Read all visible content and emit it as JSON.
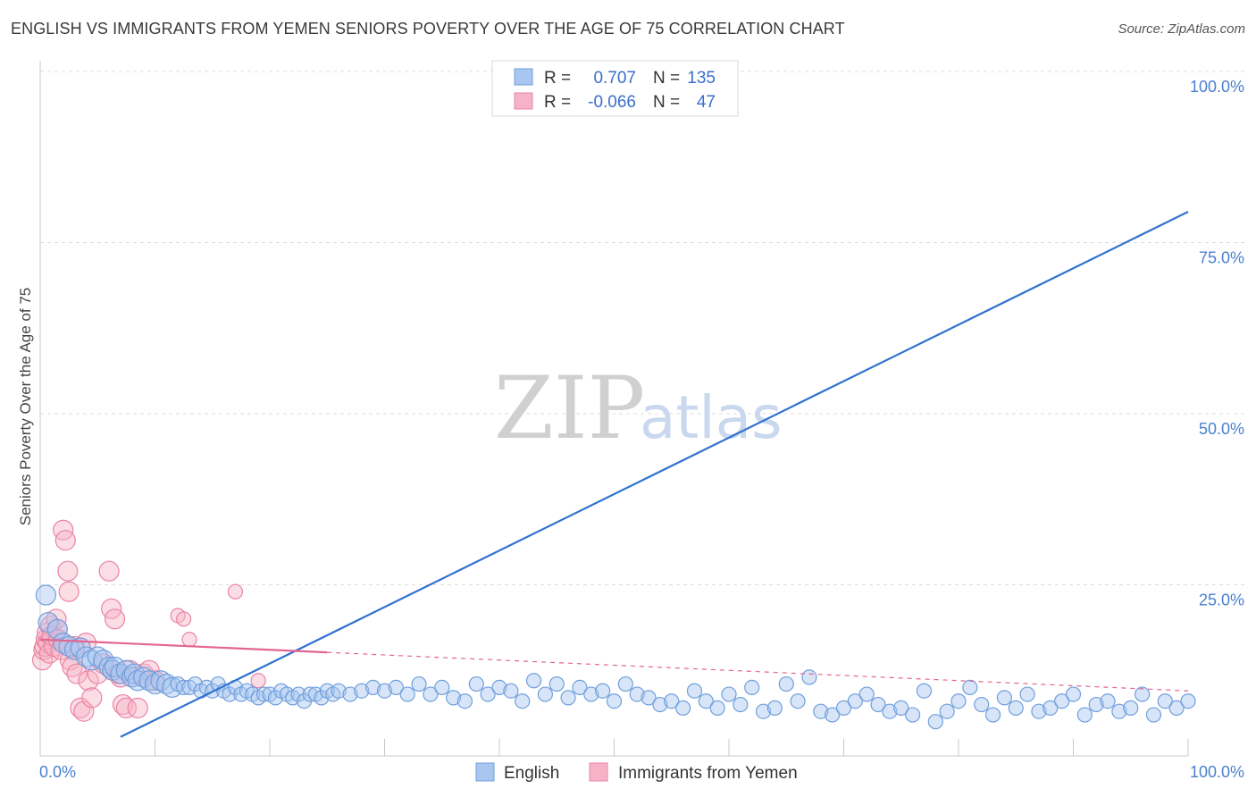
{
  "header": {
    "title": "ENGLISH VS IMMIGRANTS FROM YEMEN SENIORS POVERTY OVER THE AGE OF 75 CORRELATION CHART",
    "source": "Source: ZipAtlas.com"
  },
  "watermark": {
    "zip": "ZIP",
    "atlas": "atlas"
  },
  "colors": {
    "english_fill": "#a9c6f0",
    "english_stroke": "#6f9fdc",
    "english_line": "#2f72d1",
    "yemen_fill": "#f6b3c8",
    "yemen_stroke": "#ea84a4",
    "yemen_line": "#e26591",
    "axis_text": "#4a7fd0"
  },
  "legend": {
    "rows": [
      {
        "r_label": "R =",
        "r_value": "0.707",
        "n_label": "N =",
        "n_value": "135"
      },
      {
        "r_label": "R =",
        "r_value": "-0.066",
        "n_label": "N =",
        "n_value": "47"
      }
    ]
  },
  "bottom_legend": {
    "items": [
      {
        "label": "English"
      },
      {
        "label": "Immigrants from Yemen"
      }
    ]
  },
  "chart_data": {
    "type": "scatter",
    "title": "ENGLISH VS IMMIGRANTS FROM YEMEN SENIORS POVERTY OVER THE AGE OF 75 CORRELATION CHART",
    "xlabel": "",
    "ylabel": "Seniors Poverty Over the Age of 75",
    "xlim": [
      0,
      100
    ],
    "ylim": [
      0,
      100
    ],
    "x_tick_labels": [
      "0.0%",
      "100.0%"
    ],
    "y_tick_values": [
      25,
      50,
      75,
      100
    ],
    "y_tick_labels": [
      "25.0%",
      "50.0%",
      "75.0%",
      "100.0%"
    ],
    "series": [
      {
        "name": "English",
        "r": 0.707,
        "n": 135,
        "trend": {
          "x": [
            0,
            100
          ],
          "y": [
            -3,
            79.5
          ]
        },
        "points": [
          [
            0.5,
            23.5
          ],
          [
            0.7,
            19.5
          ],
          [
            1.5,
            18.5
          ],
          [
            2,
            16.5
          ],
          [
            2.5,
            16
          ],
          [
            3,
            15.5
          ],
          [
            3.5,
            15.8
          ],
          [
            4,
            14.5
          ],
          [
            4.5,
            14
          ],
          [
            5,
            14.5
          ],
          [
            5.5,
            14
          ],
          [
            6,
            13
          ],
          [
            6.3,
            12.5
          ],
          [
            6.5,
            13
          ],
          [
            7,
            12
          ],
          [
            7.5,
            12.5
          ],
          [
            8,
            11.5
          ],
          [
            8.2,
            12
          ],
          [
            8.5,
            11
          ],
          [
            9,
            11.5
          ],
          [
            9.5,
            11
          ],
          [
            10,
            10.5
          ],
          [
            10.5,
            11
          ],
          [
            11,
            10.5
          ],
          [
            11.5,
            10
          ],
          [
            12,
            10.5
          ],
          [
            12.5,
            10
          ],
          [
            13,
            10
          ],
          [
            13.5,
            10.5
          ],
          [
            14,
            9.5
          ],
          [
            14.5,
            10
          ],
          [
            15,
            9.5
          ],
          [
            15.5,
            10.5
          ],
          [
            16,
            9.5
          ],
          [
            16.5,
            9
          ],
          [
            17,
            10
          ],
          [
            17.5,
            9
          ],
          [
            18,
            9.5
          ],
          [
            18.5,
            9
          ],
          [
            19,
            8.5
          ],
          [
            19.5,
            9
          ],
          [
            20,
            9
          ],
          [
            20.5,
            8.5
          ],
          [
            21,
            9.5
          ],
          [
            21.5,
            9
          ],
          [
            22,
            8.5
          ],
          [
            22.5,
            9
          ],
          [
            23,
            8
          ],
          [
            23.5,
            9
          ],
          [
            24,
            9
          ],
          [
            24.5,
            8.5
          ],
          [
            25,
            9.5
          ],
          [
            25.5,
            9
          ],
          [
            26,
            9.5
          ],
          [
            27,
            9
          ],
          [
            28,
            9.5
          ],
          [
            29,
            10
          ],
          [
            30,
            9.5
          ],
          [
            31,
            10
          ],
          [
            32,
            9
          ],
          [
            33,
            10.5
          ],
          [
            34,
            9
          ],
          [
            35,
            10
          ],
          [
            36,
            8.5
          ],
          [
            37,
            8
          ],
          [
            38,
            10.5
          ],
          [
            39,
            9
          ],
          [
            40,
            10
          ],
          [
            41,
            9.5
          ],
          [
            42,
            8
          ],
          [
            43,
            11
          ],
          [
            44,
            9
          ],
          [
            45,
            10.5
          ],
          [
            46,
            8.5
          ],
          [
            47,
            10
          ],
          [
            48,
            9
          ],
          [
            49,
            9.5
          ],
          [
            50,
            8
          ],
          [
            51,
            10.5
          ],
          [
            52,
            9
          ],
          [
            53,
            8.5
          ],
          [
            54,
            7.5
          ],
          [
            55,
            8
          ],
          [
            56,
            7
          ],
          [
            57,
            9.5
          ],
          [
            58,
            8
          ],
          [
            59,
            7
          ],
          [
            60,
            9
          ],
          [
            61,
            7.5
          ],
          [
            62,
            10
          ],
          [
            63,
            6.5
          ],
          [
            64,
            7
          ],
          [
            65,
            10.5
          ],
          [
            66,
            8
          ],
          [
            67,
            11.5
          ],
          [
            68,
            6.5
          ],
          [
            69,
            6
          ],
          [
            70,
            7
          ],
          [
            71,
            8
          ],
          [
            72,
            9
          ],
          [
            73,
            7.5
          ],
          [
            74,
            6.5
          ],
          [
            75,
            7
          ],
          [
            76,
            6
          ],
          [
            77,
            9.5
          ],
          [
            78,
            5
          ],
          [
            79,
            6.5
          ],
          [
            80,
            8
          ],
          [
            81,
            10
          ],
          [
            82,
            7.5
          ],
          [
            83,
            6
          ],
          [
            84,
            8.5
          ],
          [
            85,
            7
          ],
          [
            86,
            9
          ],
          [
            87,
            6.5
          ],
          [
            88,
            7
          ],
          [
            89,
            8
          ],
          [
            90,
            9
          ],
          [
            91,
            6
          ],
          [
            92,
            7.5
          ],
          [
            93,
            8
          ],
          [
            94,
            6.5
          ],
          [
            95,
            7
          ],
          [
            96,
            9
          ],
          [
            97,
            6
          ],
          [
            98,
            8
          ],
          [
            99,
            7
          ],
          [
            100,
            8
          ]
        ]
      },
      {
        "name": "Immigrants from Yemen",
        "r": -0.066,
        "n": 47,
        "trend": {
          "x": [
            0,
            100
          ],
          "y": [
            17,
            9.5
          ]
        },
        "points": [
          [
            0.2,
            14
          ],
          [
            0.3,
            15.5
          ],
          [
            0.4,
            16
          ],
          [
            0.5,
            17
          ],
          [
            0.6,
            18
          ],
          [
            0.7,
            16.5
          ],
          [
            0.8,
            15
          ],
          [
            0.9,
            19
          ],
          [
            1,
            17.5
          ],
          [
            1.2,
            16
          ],
          [
            1.4,
            20
          ],
          [
            1.5,
            18.5
          ],
          [
            1.6,
            17
          ],
          [
            1.8,
            15.5
          ],
          [
            2,
            33
          ],
          [
            2.2,
            31.5
          ],
          [
            2.4,
            27
          ],
          [
            2.5,
            24
          ],
          [
            2.6,
            14
          ],
          [
            2.8,
            13
          ],
          [
            3,
            16
          ],
          [
            3.2,
            12
          ],
          [
            3.5,
            7
          ],
          [
            3.8,
            6.5
          ],
          [
            4,
            16.5
          ],
          [
            4.2,
            11
          ],
          [
            4.5,
            8.5
          ],
          [
            5,
            12
          ],
          [
            5.5,
            13.5
          ],
          [
            6,
            27
          ],
          [
            6.2,
            21.5
          ],
          [
            6.5,
            20
          ],
          [
            6.8,
            12
          ],
          [
            7,
            11.5
          ],
          [
            7.2,
            7.5
          ],
          [
            7.5,
            7
          ],
          [
            7.8,
            12.5
          ],
          [
            8,
            11.5
          ],
          [
            8.5,
            7
          ],
          [
            9,
            12
          ],
          [
            9.5,
            12.5
          ],
          [
            10,
            11
          ],
          [
            12,
            20.5
          ],
          [
            12.5,
            20
          ],
          [
            13,
            17
          ],
          [
            17,
            24
          ],
          [
            19,
            11
          ]
        ]
      }
    ]
  }
}
